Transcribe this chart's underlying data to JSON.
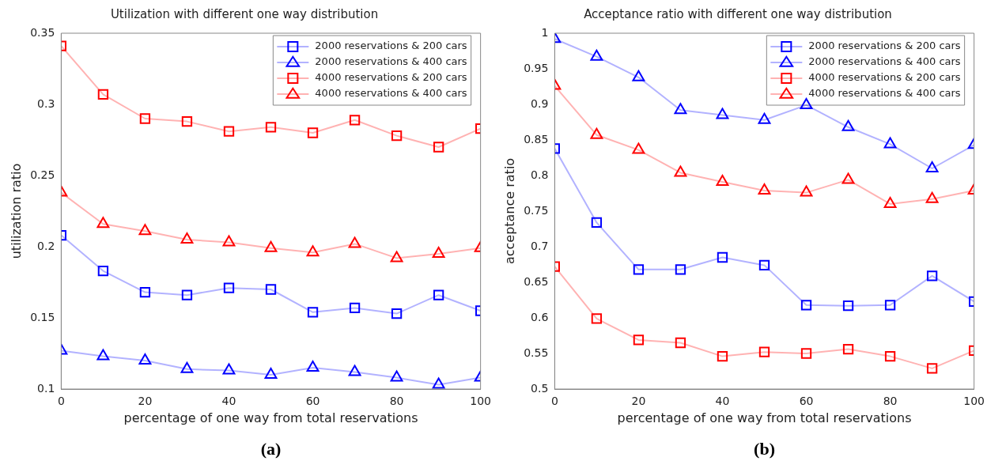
{
  "chart_data": [
    {
      "type": "line",
      "title": "Utilization with different one way distribution",
      "xlabel": "percentage of one way from total reservations",
      "ylabel": "utilization ratio",
      "annotations": [
        "(a)"
      ],
      "x": [
        0,
        10,
        20,
        30,
        40,
        50,
        60,
        70,
        80,
        90,
        100
      ],
      "xlim": [
        0,
        100
      ],
      "xticks": [
        0,
        20,
        40,
        60,
        80,
        100
      ],
      "ylim": [
        0.1,
        0.35
      ],
      "yticks": [
        0.1,
        0.15,
        0.2,
        0.25,
        0.3,
        0.35
      ],
      "legend": "top right",
      "series": [
        {
          "name": "2000 reservations & 200 cars",
          "color": "#0000ff",
          "marker": "square",
          "values": [
            0.208,
            0.183,
            0.168,
            0.166,
            0.171,
            0.17,
            0.154,
            0.157,
            0.153,
            0.166,
            0.155
          ]
        },
        {
          "name": "2000 reservations & 400 cars",
          "color": "#0000ff",
          "marker": "triangle",
          "values": [
            0.127,
            0.123,
            0.12,
            0.114,
            0.113,
            0.11,
            0.115,
            0.112,
            0.108,
            0.103,
            0.108
          ]
        },
        {
          "name": "4000 reservations & 200 cars",
          "color": "#ff0000",
          "marker": "square",
          "values": [
            0.341,
            0.307,
            0.29,
            0.288,
            0.281,
            0.284,
            0.28,
            0.289,
            0.278,
            0.27,
            0.283
          ]
        },
        {
          "name": "4000 reservations & 400 cars",
          "color": "#ff0000",
          "marker": "triangle",
          "values": [
            0.238,
            0.216,
            0.211,
            0.205,
            0.203,
            0.199,
            0.196,
            0.202,
            0.192,
            0.195,
            0.199
          ]
        }
      ]
    },
    {
      "type": "line",
      "title": "Acceptance ratio with different one way distribution",
      "xlabel": "percentage of one way from total reservations",
      "ylabel": "acceptance ratio",
      "annotations": [
        "(b)"
      ],
      "x": [
        0,
        10,
        20,
        30,
        40,
        50,
        60,
        70,
        80,
        90,
        100
      ],
      "xlim": [
        0,
        100
      ],
      "xticks": [
        0,
        20,
        40,
        60,
        80,
        100
      ],
      "ylim": [
        0.5,
        1
      ],
      "yticks": [
        0.5,
        0.55,
        0.6,
        0.65,
        0.7,
        0.75,
        0.8,
        0.85,
        0.9,
        0.95,
        1
      ],
      "legend": "top right",
      "series": [
        {
          "name": "2000 reservations & 200 cars",
          "color": "#0000ff",
          "marker": "square",
          "values": [
            0.838,
            0.734,
            0.668,
            0.668,
            0.685,
            0.674,
            0.618,
            0.617,
            0.618,
            0.659,
            0.623
          ]
        },
        {
          "name": "2000 reservations & 400 cars",
          "color": "#0000ff",
          "marker": "triangle",
          "values": [
            0.992,
            0.967,
            0.938,
            0.892,
            0.885,
            0.878,
            0.899,
            0.868,
            0.844,
            0.81,
            0.843
          ]
        },
        {
          "name": "4000 reservations & 200 cars",
          "color": "#ff0000",
          "marker": "square",
          "values": [
            0.672,
            0.599,
            0.569,
            0.565,
            0.546,
            0.552,
            0.55,
            0.556,
            0.546,
            0.529,
            0.554
          ]
        },
        {
          "name": "4000 reservations & 400 cars",
          "color": "#ff0000",
          "marker": "triangle",
          "values": [
            0.926,
            0.857,
            0.836,
            0.804,
            0.791,
            0.779,
            0.776,
            0.794,
            0.76,
            0.767,
            0.779
          ]
        }
      ]
    }
  ]
}
